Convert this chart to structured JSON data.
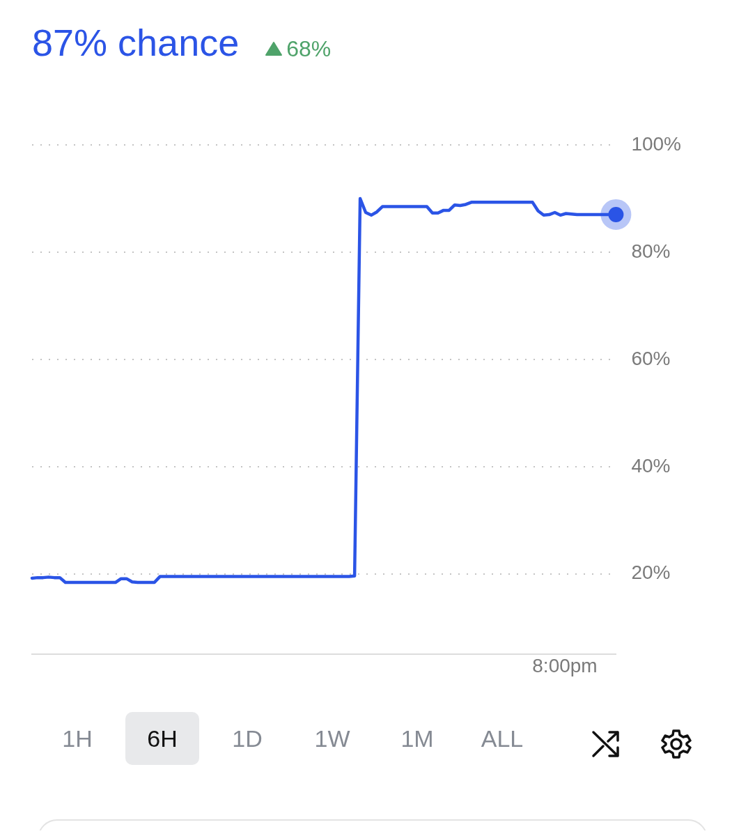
{
  "chart_data": {
    "type": "line",
    "title": "87% chance",
    "subtitle": "68%",
    "categories": [
      null,
      null,
      null,
      null,
      null,
      null,
      null,
      null,
      null,
      null,
      null,
      null,
      null,
      null,
      null,
      null,
      null,
      null,
      null,
      null,
      null,
      null,
      null,
      null,
      null,
      null,
      null,
      null,
      null,
      null,
      null,
      null,
      null,
      null,
      null,
      null,
      null,
      null,
      null,
      null,
      null,
      null,
      null,
      null,
      null,
      null,
      null,
      null,
      null,
      null,
      null,
      null,
      null,
      null,
      null,
      null,
      null,
      null,
      null,
      null,
      null,
      null,
      null,
      null,
      null,
      null,
      null,
      null,
      null,
      null,
      null,
      null,
      null,
      null,
      null,
      null,
      null,
      null,
      null,
      null,
      null,
      null,
      null,
      null,
      null,
      null,
      null,
      null,
      null,
      null,
      null,
      null,
      null,
      null,
      null,
      null,
      null,
      null,
      null,
      null,
      null,
      null,
      null,
      null,
      null,
      null
    ],
    "series": [
      {
        "color": "#2b54e6",
        "values": [
          19.2,
          19.3,
          19.3,
          19.4,
          19.3,
          19.3,
          18.4,
          18.4,
          18.4,
          18.4,
          18.4,
          18.4,
          18.4,
          18.4,
          18.4,
          18.4,
          19.1,
          19.1,
          18.5,
          18.4,
          18.4,
          18.4,
          18.4,
          19.5,
          19.5,
          19.5,
          19.5,
          19.5,
          19.5,
          19.5,
          19.5,
          19.5,
          19.5,
          19.5,
          19.5,
          19.5,
          19.5,
          19.5,
          19.5,
          19.5,
          19.5,
          19.5,
          19.5,
          19.5,
          19.5,
          19.5,
          19.5,
          19.5,
          19.5,
          19.5,
          19.5,
          19.5,
          19.5,
          19.5,
          19.5,
          19.5,
          19.5,
          19.5,
          19.6,
          90,
          87.4,
          86.9,
          87.5,
          88.5,
          88.5,
          88.5,
          88.5,
          88.5,
          88.5,
          88.5,
          88.5,
          88.5,
          87.3,
          87.3,
          87.8,
          87.8,
          88.8,
          88.7,
          88.9,
          89.3,
          89.3,
          89.3,
          89.3,
          89.3,
          89.3,
          89.3,
          89.3,
          89.3,
          89.3,
          89.3,
          89.3,
          87.7,
          86.9,
          87,
          87.4,
          86.9,
          87.2,
          87.1,
          87,
          87,
          87,
          87,
          87,
          87,
          87,
          87
        ]
      }
    ],
    "ylim": [
      5,
      100
    ],
    "yticks": [
      {
        "value": 20,
        "label": "20%"
      },
      {
        "value": 40,
        "label": "40%"
      },
      {
        "value": 60,
        "label": "60%"
      },
      {
        "value": 80,
        "label": "80%"
      },
      {
        "value": 100,
        "label": "100%"
      }
    ],
    "grid": "y",
    "legend": false,
    "tick_labels": "y",
    "annotations": [
      "8:00pm",
      "1H",
      "6H",
      "1D",
      "1W",
      "1M",
      "ALL"
    ]
  }
}
